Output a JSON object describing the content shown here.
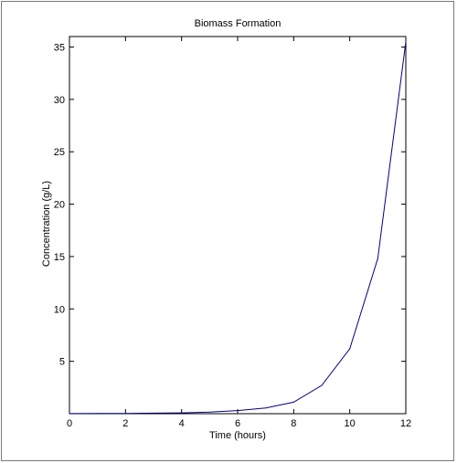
{
  "chart_data": {
    "type": "line",
    "title": "Biomass Formation",
    "xlabel": "Time (hours)",
    "ylabel": "Concentration (g/L)",
    "xlim": [
      0,
      12
    ],
    "ylim": [
      0,
      36
    ],
    "xticks": [
      0,
      2,
      4,
      6,
      8,
      10,
      12
    ],
    "yticks": [
      5,
      10,
      15,
      20,
      25,
      30,
      35
    ],
    "grid": false,
    "series": [
      {
        "x": [
          0,
          1,
          2,
          3,
          4,
          5,
          6,
          7,
          8,
          9,
          10,
          11,
          12
        ],
        "values": [
          0.01,
          0.02,
          0.03,
          0.05,
          0.08,
          0.15,
          0.3,
          0.55,
          1.1,
          2.7,
          6.2,
          14.8,
          35.5
        ],
        "color": "#00007f"
      }
    ]
  }
}
